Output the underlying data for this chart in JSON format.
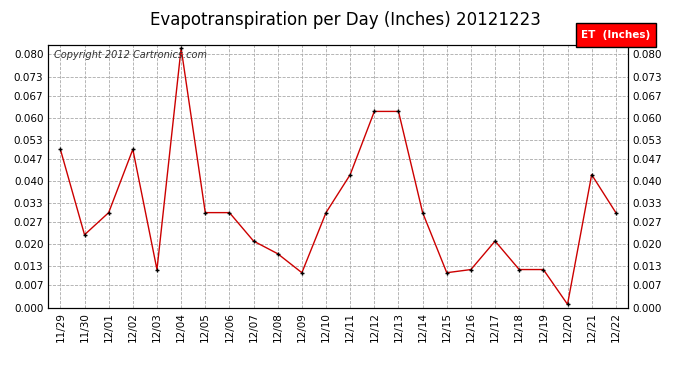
{
  "title": "Evapotranspiration per Day (Inches) 20121223",
  "copyright": "Copyright 2012 Cartronics.com",
  "legend_label": "ET  (Inches)",
  "legend_bg": "#ff0000",
  "legend_text_color": "#ffffff",
  "x_labels": [
    "11/29",
    "11/30",
    "12/01",
    "12/02",
    "12/03",
    "12/04",
    "12/05",
    "12/06",
    "12/07",
    "12/08",
    "12/09",
    "12/10",
    "12/11",
    "12/12",
    "12/13",
    "12/14",
    "12/15",
    "12/16",
    "12/17",
    "12/18",
    "12/19",
    "12/20",
    "12/21",
    "12/22"
  ],
  "y_values": [
    0.05,
    0.023,
    0.03,
    0.05,
    0.012,
    0.082,
    0.03,
    0.03,
    0.021,
    0.017,
    0.011,
    0.03,
    0.042,
    0.062,
    0.062,
    0.03,
    0.011,
    0.012,
    0.021,
    0.012,
    0.012,
    0.001,
    0.042,
    0.03
  ],
  "line_color": "#cc0000",
  "marker_color": "#000000",
  "bg_color": "#ffffff",
  "grid_color": "#aaaaaa",
  "ylim": [
    0.0,
    0.083
  ],
  "yticks": [
    0.0,
    0.007,
    0.013,
    0.02,
    0.027,
    0.033,
    0.04,
    0.047,
    0.053,
    0.06,
    0.067,
    0.073,
    0.08
  ],
  "title_fontsize": 12,
  "copyright_fontsize": 7,
  "tick_fontsize": 7.5
}
